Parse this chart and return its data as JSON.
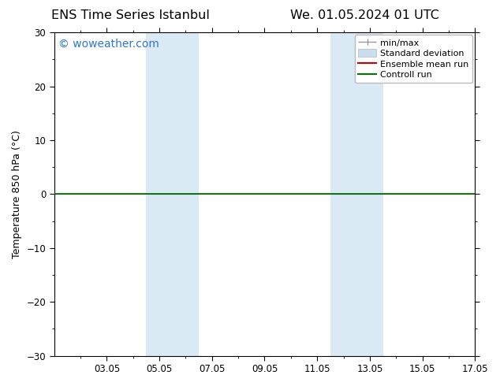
{
  "title_left": "ENS Time Series Istanbul",
  "title_right": "We. 01.05.2024 01 UTC",
  "ylabel": "Temperature 850 hPa (°C)",
  "ylim": [
    -30,
    30
  ],
  "yticks": [
    -30,
    -20,
    -10,
    0,
    10,
    20,
    30
  ],
  "xlim": [
    0.0,
    16.0
  ],
  "xtick_labels": [
    "03.05",
    "05.05",
    "07.05",
    "09.05",
    "11.05",
    "13.05",
    "15.05",
    "17.05"
  ],
  "xtick_positions": [
    2,
    4,
    6,
    8,
    10,
    12,
    14,
    16
  ],
  "watermark": "© woweather.com",
  "watermark_color": "#3377cc",
  "bg_color": "#ffffff",
  "plot_bg_color": "#ffffff",
  "shaded_bands": [
    {
      "x_start": 3.5,
      "x_end": 5.5
    },
    {
      "x_start": 10.5,
      "x_end": 12.5
    }
  ],
  "shade_color": "#daeaf5",
  "zero_line_color": "#000000",
  "control_run_color": "#007700",
  "ensemble_mean_color": "#cc0000",
  "minmax_color": "#999999",
  "stddev_color": "#ccddee",
  "title_fontsize": 11.5,
  "axis_label_fontsize": 9,
  "tick_fontsize": 8.5,
  "legend_fontsize": 8,
  "watermark_fontsize": 10
}
